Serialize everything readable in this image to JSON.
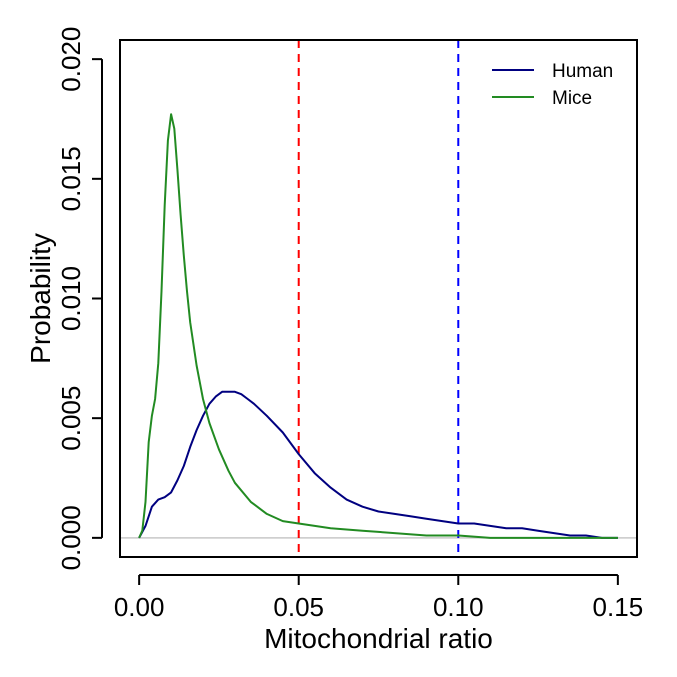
{
  "chart_data": {
    "type": "line",
    "title": "",
    "xlabel": "Mitochondrial ratio",
    "ylabel": "Probability",
    "xlim": [
      -0.006,
      0.156
    ],
    "ylim": [
      -0.0008,
      0.0208
    ],
    "x_ticks": [
      0.0,
      0.05,
      0.1,
      0.15
    ],
    "x_tick_labels": [
      "0.00",
      "0.05",
      "0.10",
      "0.15"
    ],
    "y_ticks": [
      0.0,
      0.005,
      0.01,
      0.015,
      0.02
    ],
    "y_tick_labels": [
      "0.000",
      "0.005",
      "0.010",
      "0.015",
      "0.020"
    ],
    "grid": false,
    "legend_position": "top-right",
    "hline": {
      "y": 0,
      "color": "#c8c8c8"
    },
    "vlines": [
      {
        "x": 0.05,
        "color": "#ff0000",
        "style": "dashed"
      },
      {
        "x": 0.1,
        "color": "#0000ff",
        "style": "dashed"
      }
    ],
    "series": [
      {
        "name": "Human",
        "color": "#000080",
        "x": [
          0.0,
          0.002,
          0.004,
          0.006,
          0.008,
          0.01,
          0.012,
          0.014,
          0.016,
          0.018,
          0.02,
          0.022,
          0.024,
          0.026,
          0.028,
          0.03,
          0.032,
          0.034,
          0.036,
          0.04,
          0.045,
          0.05,
          0.055,
          0.06,
          0.065,
          0.07,
          0.075,
          0.08,
          0.085,
          0.09,
          0.095,
          0.1,
          0.105,
          0.11,
          0.115,
          0.12,
          0.125,
          0.13,
          0.135,
          0.14,
          0.145,
          0.15
        ],
        "y": [
          0.0,
          0.0005,
          0.0013,
          0.0016,
          0.0017,
          0.0019,
          0.0024,
          0.003,
          0.0038,
          0.0045,
          0.0051,
          0.0056,
          0.0059,
          0.0061,
          0.0061,
          0.0061,
          0.006,
          0.0058,
          0.0056,
          0.0051,
          0.0044,
          0.0035,
          0.0027,
          0.0021,
          0.0016,
          0.0013,
          0.0011,
          0.001,
          0.0009,
          0.0008,
          0.0007,
          0.0006,
          0.0006,
          0.0005,
          0.0004,
          0.0004,
          0.0003,
          0.0002,
          0.0001,
          0.0001,
          0.0,
          0.0
        ]
      },
      {
        "name": "Mice",
        "color": "#228b22",
        "x": [
          0.0,
          0.001,
          0.002,
          0.003,
          0.004,
          0.005,
          0.006,
          0.007,
          0.008,
          0.009,
          0.01,
          0.011,
          0.012,
          0.013,
          0.014,
          0.015,
          0.016,
          0.018,
          0.02,
          0.022,
          0.025,
          0.028,
          0.03,
          0.035,
          0.04,
          0.045,
          0.05,
          0.055,
          0.06,
          0.07,
          0.08,
          0.09,
          0.1,
          0.11,
          0.12,
          0.13,
          0.14,
          0.15
        ],
        "y": [
          0.0,
          0.0003,
          0.0015,
          0.004,
          0.0051,
          0.0058,
          0.0073,
          0.0103,
          0.0139,
          0.0166,
          0.0177,
          0.0171,
          0.0154,
          0.0135,
          0.0118,
          0.0103,
          0.009,
          0.0072,
          0.0058,
          0.0048,
          0.0037,
          0.0028,
          0.0023,
          0.0015,
          0.001,
          0.0007,
          0.0006,
          0.0005,
          0.0004,
          0.0003,
          0.0002,
          0.0001,
          0.0001,
          0.0,
          0.0,
          0.0,
          0.0,
          0.0
        ]
      }
    ]
  }
}
